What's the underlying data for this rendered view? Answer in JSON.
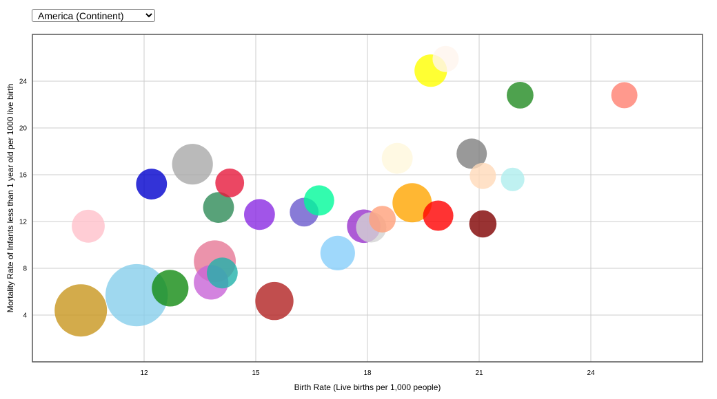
{
  "controls": {
    "region_options": [
      "America (Continent)"
    ],
    "region_selected": "America (Continent)"
  },
  "chart_data": {
    "type": "scatter",
    "title": "",
    "xlabel": "Birth Rate (Live births per 1,000 people)",
    "ylabel": "Mortality Rate of Infants less than 1 year old per 1000 live birth",
    "xlim": [
      9,
      27
    ],
    "ylim": [
      0,
      28
    ],
    "xticks": [
      12,
      15,
      18,
      21,
      24
    ],
    "yticks": [
      4,
      8,
      12,
      16,
      20,
      24
    ],
    "grid": true,
    "legend": "none",
    "note": "bubble chart: size encodes a third, unlabeled quantity (relative)",
    "points": [
      {
        "x": 10.3,
        "y": 4.4,
        "size": 1.0,
        "color": "#C8961E"
      },
      {
        "x": 11.8,
        "y": 5.7,
        "size": 1.19,
        "color": "#87CEEB"
      },
      {
        "x": 12.7,
        "y": 6.3,
        "size": 0.7,
        "color": "#138B13"
      },
      {
        "x": 10.5,
        "y": 11.6,
        "size": 0.63,
        "color": "#FFC0CB"
      },
      {
        "x": 12.2,
        "y": 15.2,
        "size": 0.59,
        "color": "#0000CD"
      },
      {
        "x": 13.3,
        "y": 16.9,
        "size": 0.78,
        "color": "#A9A9A9"
      },
      {
        "x": 14.0,
        "y": 13.2,
        "size": 0.59,
        "color": "#2E8B57"
      },
      {
        "x": 14.3,
        "y": 15.3,
        "size": 0.55,
        "color": "#E6193C"
      },
      {
        "x": 13.9,
        "y": 8.6,
        "size": 0.8,
        "color": "#E67896"
      },
      {
        "x": 13.8,
        "y": 6.8,
        "size": 0.66,
        "color": "#C864D7"
      },
      {
        "x": 14.1,
        "y": 7.6,
        "size": 0.59,
        "color": "#20B2AA"
      },
      {
        "x": 15.1,
        "y": 12.6,
        "size": 0.59,
        "color": "#8A2BE2"
      },
      {
        "x": 15.5,
        "y": 5.2,
        "size": 0.73,
        "color": "#B22222"
      },
      {
        "x": 16.3,
        "y": 12.8,
        "size": 0.55,
        "color": "#6A5ACD"
      },
      {
        "x": 16.7,
        "y": 13.8,
        "size": 0.58,
        "color": "#00FA9A"
      },
      {
        "x": 17.2,
        "y": 9.3,
        "size": 0.66,
        "color": "#87CEFA"
      },
      {
        "x": 17.9,
        "y": 11.6,
        "size": 0.64,
        "color": "#9932CC"
      },
      {
        "x": 18.1,
        "y": 11.5,
        "size": 0.58,
        "color": "#D3D3D3"
      },
      {
        "x": 18.4,
        "y": 12.2,
        "size": 0.51,
        "color": "#FFA07A"
      },
      {
        "x": 18.8,
        "y": 17.4,
        "size": 0.59,
        "color": "#FFF8DC"
      },
      {
        "x": 19.2,
        "y": 13.6,
        "size": 0.75,
        "color": "#FFA500"
      },
      {
        "x": 19.9,
        "y": 12.5,
        "size": 0.58,
        "color": "#FF0000"
      },
      {
        "x": 19.7,
        "y": 24.9,
        "size": 0.62,
        "color": "#FFFF00"
      },
      {
        "x": 20.1,
        "y": 25.9,
        "size": 0.5,
        "color": "#FFF5EE"
      },
      {
        "x": 20.8,
        "y": 17.8,
        "size": 0.58,
        "color": "#808080"
      },
      {
        "x": 21.1,
        "y": 15.9,
        "size": 0.5,
        "color": "#FFDAB9"
      },
      {
        "x": 21.1,
        "y": 11.8,
        "size": 0.52,
        "color": "#800000"
      },
      {
        "x": 21.9,
        "y": 15.6,
        "size": 0.45,
        "color": "#AFEEEE"
      },
      {
        "x": 22.1,
        "y": 22.8,
        "size": 0.51,
        "color": "#228B22"
      },
      {
        "x": 24.9,
        "y": 22.8,
        "size": 0.5,
        "color": "#FF8070"
      }
    ]
  }
}
